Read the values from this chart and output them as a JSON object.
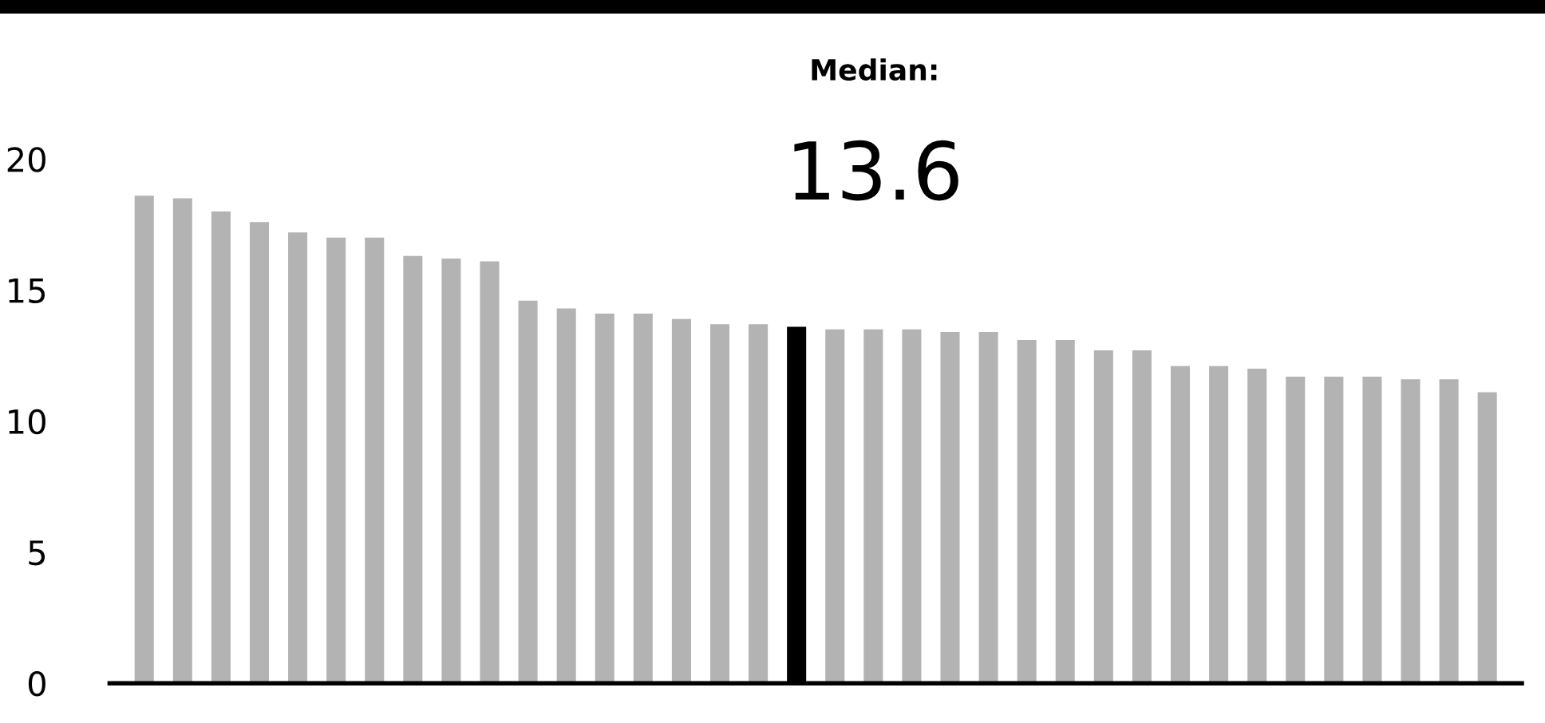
{
  "chart_data": {
    "type": "bar",
    "categories": [
      null,
      null,
      null,
      null,
      null,
      null,
      null,
      null,
      null,
      null,
      null,
      null,
      null,
      null,
      null,
      null,
      null,
      null,
      null,
      null,
      null,
      null,
      null,
      null,
      null,
      null,
      null,
      null,
      null,
      null,
      null,
      null,
      null,
      null,
      null,
      null
    ],
    "values": [
      18.6,
      18.5,
      18.0,
      17.6,
      17.2,
      17.0,
      17.0,
      16.3,
      16.2,
      16.1,
      14.6,
      14.3,
      14.1,
      14.1,
      13.9,
      13.7,
      13.7,
      13.6,
      13.5,
      13.5,
      13.5,
      13.4,
      13.4,
      13.1,
      13.1,
      12.7,
      12.7,
      12.1,
      12.1,
      12.0,
      11.7,
      11.7,
      11.7,
      11.6,
      11.6,
      11.1
    ],
    "colors": [
      "#b3b3b3",
      "#b3b3b3",
      "#b3b3b3",
      "#b3b3b3",
      "#b3b3b3",
      "#b3b3b3",
      "#b3b3b3",
      "#b3b3b3",
      "#b3b3b3",
      "#b3b3b3",
      "#b3b3b3",
      "#b3b3b3",
      "#b3b3b3",
      "#b3b3b3",
      "#b3b3b3",
      "#b3b3b3",
      "#b3b3b3",
      "#000000",
      "#b3b3b3",
      "#b3b3b3",
      "#b3b3b3",
      "#b3b3b3",
      "#b3b3b3",
      "#b3b3b3",
      "#b3b3b3",
      "#b3b3b3",
      "#b3b3b3",
      "#b3b3b3",
      "#b3b3b3",
      "#b3b3b3",
      "#b3b3b3",
      "#b3b3b3",
      "#b3b3b3",
      "#b3b3b3",
      "#b3b3b3",
      "#b3b3b3"
    ],
    "ylim": [
      0,
      20
    ],
    "yticks": [
      0,
      5,
      10,
      15,
      20
    ],
    "grid": false,
    "annotations": [
      "Median:",
      "13.6"
    ]
  }
}
